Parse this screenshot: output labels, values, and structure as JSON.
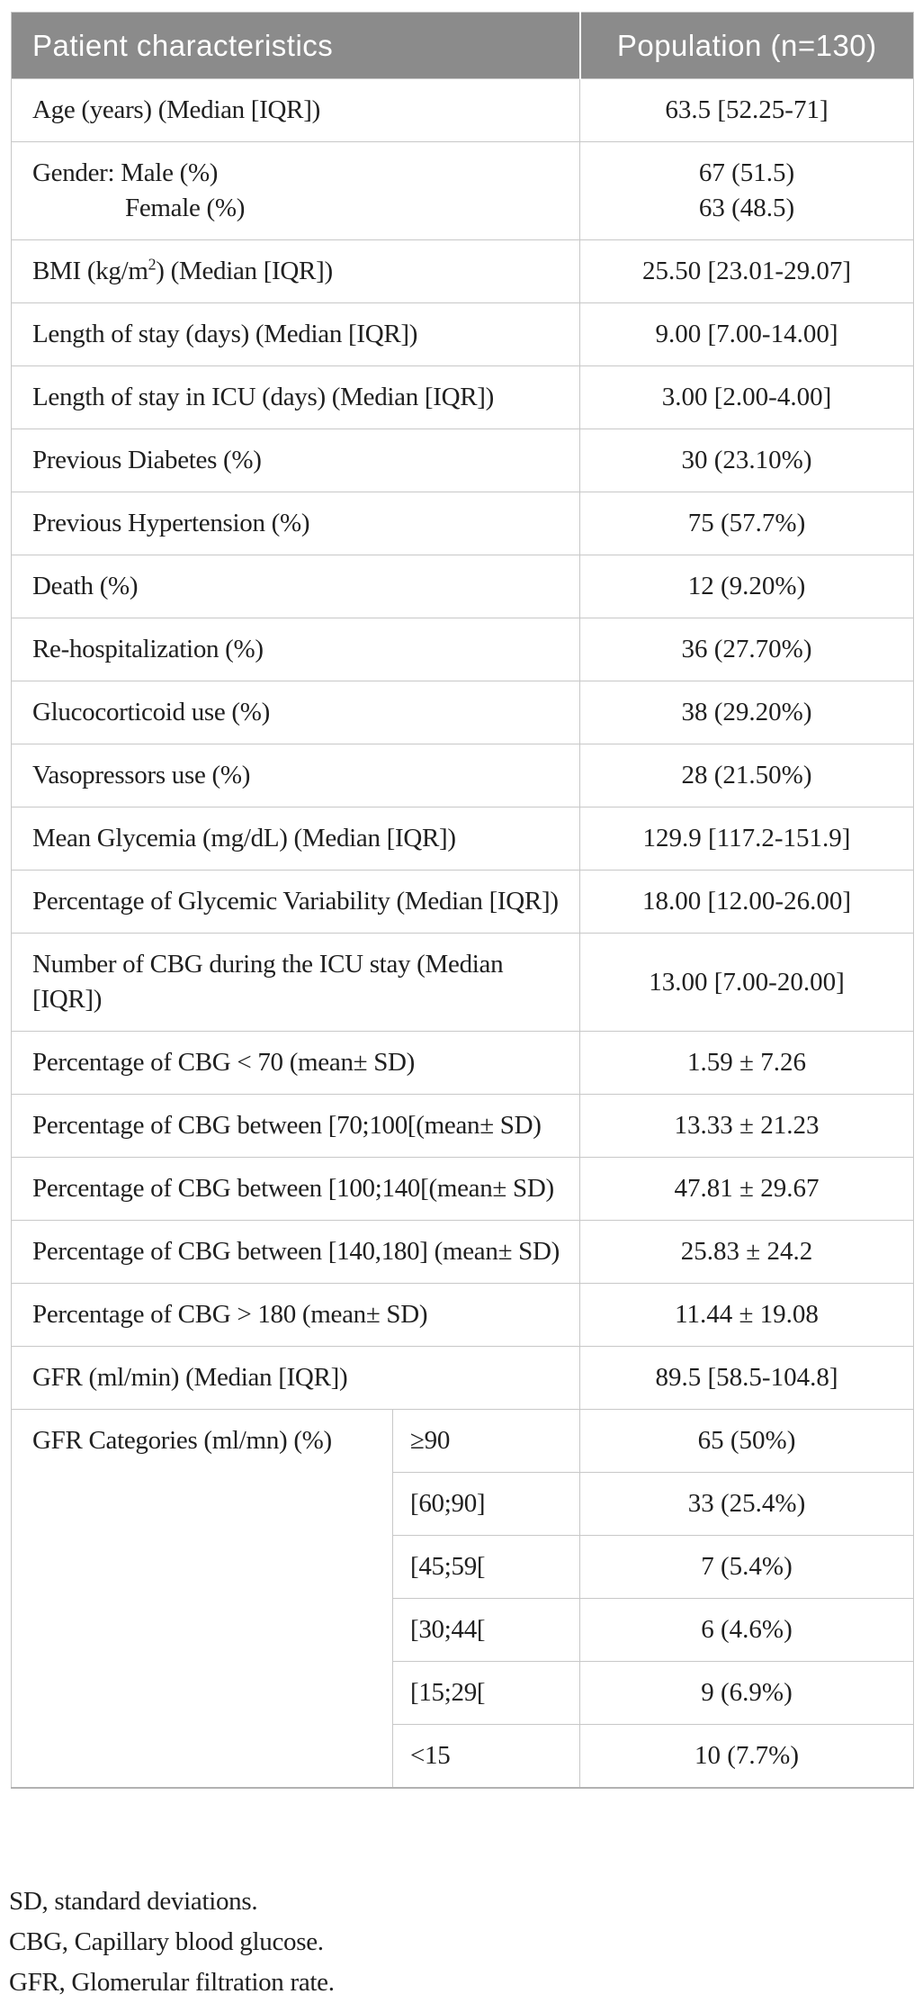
{
  "table": {
    "header": {
      "col1": "Patient characteristics",
      "col2": "Population (n=130)"
    },
    "rows": [
      {
        "label": "Age (years) (Median [IQR])",
        "value": "63.5 [52.25-71]"
      },
      {
        "label_lines": [
          "Gender: Male (%)",
          "Female (%)"
        ],
        "value_lines": [
          "67 (51.5)",
          "63 (48.5)"
        ]
      },
      {
        "label_pre": "BMI (kg/m",
        "label_sup": "2",
        "label_post": ") (Median [IQR])",
        "value": "25.50 [23.01-29.07]"
      },
      {
        "label": "Length of stay (days) (Median [IQR])",
        "value": "9.00 [7.00-14.00]"
      },
      {
        "label": "Length of stay in ICU (days) (Median [IQR])",
        "value": "3.00 [2.00-4.00]"
      },
      {
        "label": "Previous Diabetes (%)",
        "value": "30 (23.10%)"
      },
      {
        "label": "Previous Hypertension (%)",
        "value": "75 (57.7%)"
      },
      {
        "label": "Death (%)",
        "value": "12 (9.20%)"
      },
      {
        "label": "Re-hospitalization (%)",
        "value": "36 (27.70%)"
      },
      {
        "label": "Glucocorticoid use (%)",
        "value": "38 (29.20%)"
      },
      {
        "label": "Vasopressors use (%)",
        "value": "28 (21.50%)"
      },
      {
        "label": "Mean Glycemia (mg/dL) (Median [IQR])",
        "value": "129.9 [117.2-151.9]"
      },
      {
        "label": "Percentage of Glycemic Variability (Median [IQR])",
        "value": "18.00 [12.00-26.00]"
      },
      {
        "label": "Number of CBG during the ICU stay (Median [IQR])",
        "value": "13.00 [7.00-20.00]"
      },
      {
        "label": "Percentage of CBG < 70 (mean± SD)",
        "value": "1.59 ± 7.26"
      },
      {
        "label": "Percentage of CBG between [70;100[(mean± SD)",
        "value": "13.33 ± 21.23"
      },
      {
        "label": "Percentage of CBG between [100;140[(mean± SD)",
        "value": "47.81 ± 29.67"
      },
      {
        "label": "Percentage of CBG between [140,180] (mean± SD)",
        "value": "25.83 ± 24.2"
      },
      {
        "label": "Percentage of CBG > 180 (mean± SD)",
        "value": "11.44 ± 19.08"
      },
      {
        "label": "GFR (ml/min) (Median [IQR])",
        "value": "89.5 [58.5-104.8]"
      }
    ],
    "gfr_group": {
      "label": "GFR Categories (ml/mn) (%)",
      "sub_rows": [
        {
          "category": "≥90",
          "value": "65 (50%)"
        },
        {
          "category": "[60;90]",
          "value": "33 (25.4%)"
        },
        {
          "category": "[45;59[",
          "value": "7 (5.4%)"
        },
        {
          "category": "[30;44[",
          "value": "6 (4.6%)"
        },
        {
          "category": "[15;29[",
          "value": "9 (6.9%)"
        },
        {
          "category": "<15",
          "value": "10 (7.7%)"
        }
      ]
    }
  },
  "footnotes": [
    "SD, standard deviations.",
    "CBG, Capillary blood glucose.",
    "GFR, Glomerular filtration rate."
  ],
  "colors": {
    "header_bg": "#8b8b8b",
    "header_text": "#ffffff",
    "border": "#c8c8c8",
    "text": "#1f1f1f"
  }
}
